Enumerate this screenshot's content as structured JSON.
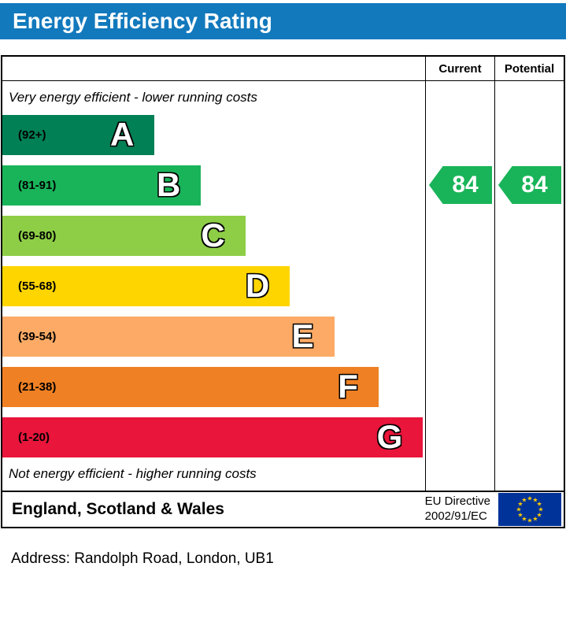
{
  "title": "Energy Efficiency Rating",
  "colors": {
    "title_bar": "#1279bd"
  },
  "header": {
    "current_label": "Current",
    "potential_label": "Potential"
  },
  "captions": {
    "top": "Very energy efficient - lower running costs",
    "bottom": "Not energy efficient - higher running costs"
  },
  "chart_data": {
    "type": "bar",
    "title": "Energy Efficiency Rating",
    "bands": [
      {
        "letter": "A",
        "range": "(92+)",
        "min": 92,
        "max": 100,
        "color": "#008054",
        "width_pct": 36
      },
      {
        "letter": "B",
        "range": "(81-91)",
        "min": 81,
        "max": 91,
        "color": "#19b459",
        "width_pct": 47
      },
      {
        "letter": "C",
        "range": "(69-80)",
        "min": 69,
        "max": 80,
        "color": "#8dce46",
        "width_pct": 57.5
      },
      {
        "letter": "D",
        "range": "(55-68)",
        "min": 55,
        "max": 68,
        "color": "#ffd500",
        "width_pct": 68
      },
      {
        "letter": "E",
        "range": "(39-54)",
        "min": 39,
        "max": 54,
        "color": "#fcaa65",
        "width_pct": 78.5
      },
      {
        "letter": "F",
        "range": "(21-38)",
        "min": 21,
        "max": 38,
        "color": "#ef8023",
        "width_pct": 89
      },
      {
        "letter": "G",
        "range": "(1-20)",
        "min": 1,
        "max": 20,
        "color": "#e9153b",
        "width_pct": 99.5
      }
    ],
    "current": {
      "value": "84",
      "band": "B",
      "color": "#19b459"
    },
    "potential": {
      "value": "84",
      "band": "B",
      "color": "#19b459"
    }
  },
  "footer": {
    "region": "England, Scotland & Wales",
    "directive_line1": "EU Directive",
    "directive_line2": "2002/91/EC",
    "eu_flag": {
      "background": "#003399",
      "stars": "#ffcc00"
    }
  },
  "address": "Address: Randolph Road, London, UB1"
}
